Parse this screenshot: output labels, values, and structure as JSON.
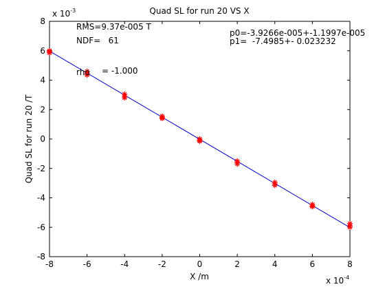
{
  "chart_data": {
    "type": "scatter",
    "title": "Quad SL for run 20 VS X",
    "xlabel": "X /m",
    "ylabel": "Quad SL for run 20 /T",
    "x_exponent_label": "x 10",
    "x_exponent_power": "-4",
    "y_exponent_label": "x 10",
    "y_exponent_power": "-3",
    "xlim": [
      -8,
      8
    ],
    "ylim": [
      -8,
      8
    ],
    "x_ticks": [
      "-8",
      "-6",
      "-4",
      "-2",
      "0",
      "2",
      "4",
      "6",
      "8"
    ],
    "y_ticks": [
      "8",
      "6",
      "4",
      "2",
      "0",
      "-2",
      "-4",
      "-6",
      "-8"
    ],
    "grid": false,
    "points_color": "#ff0000",
    "fit_color": "#0000cc",
    "fit_line": {
      "x": [
        -8,
        8
      ],
      "y": [
        5.98,
        -6.02
      ]
    },
    "series": [
      {
        "points": [
          {
            "x": -8,
            "y": 5.95
          },
          {
            "x": -8,
            "y": 5.85
          },
          {
            "x": -8,
            "y": 6.0
          },
          {
            "x": -6,
            "y": 4.6
          },
          {
            "x": -6,
            "y": 4.45
          },
          {
            "x": -6,
            "y": 4.35
          },
          {
            "x": -4,
            "y": 3.05
          },
          {
            "x": -4,
            "y": 2.9
          },
          {
            "x": -4,
            "y": 2.8
          },
          {
            "x": -2,
            "y": 1.55
          },
          {
            "x": -2,
            "y": 1.45
          },
          {
            "x": -2,
            "y": 1.4
          },
          {
            "x": 0,
            "y": 0.0
          },
          {
            "x": 0,
            "y": -0.1
          },
          {
            "x": 0,
            "y": -0.15
          },
          {
            "x": 2,
            "y": -1.5
          },
          {
            "x": 2,
            "y": -1.6
          },
          {
            "x": 2,
            "y": -1.7
          },
          {
            "x": 4,
            "y": -2.95
          },
          {
            "x": 4,
            "y": -3.05
          },
          {
            "x": 4,
            "y": -3.15
          },
          {
            "x": 6,
            "y": -4.45
          },
          {
            "x": 6,
            "y": -4.55
          },
          {
            "x": 6,
            "y": -4.6
          },
          {
            "x": 8,
            "y": -5.75
          },
          {
            "x": 8,
            "y": -5.9
          },
          {
            "x": 8,
            "y": -6.0
          }
        ]
      }
    ],
    "annotations": {
      "rms": "RMS=9.37e-005 T",
      "ndf": "NDF=   61",
      "rho_label": "rho",
      "rho_value": "= -1.000",
      "p0": "p0=-3.9266e-005+-1.1997e-005",
      "p1": "p1=  -7.4985+- 0.023232"
    }
  }
}
